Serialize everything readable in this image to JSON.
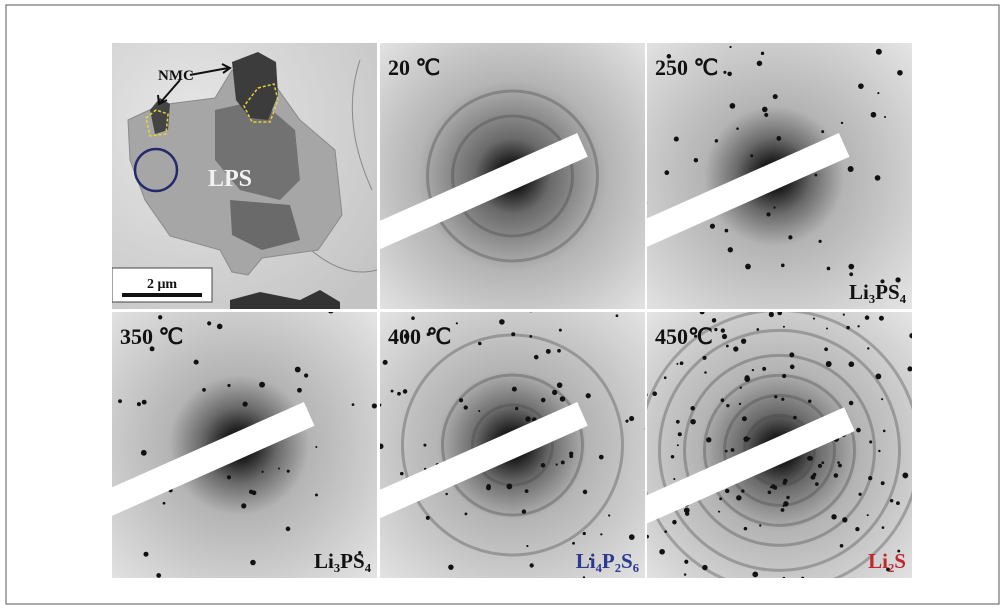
{
  "tem_image": {
    "particle_label": "NMC",
    "matrix_label": "LPS",
    "scale_bar": "2 μm"
  },
  "diffraction_patterns": [
    {
      "temperature": "20 ℃"
    },
    {
      "temperature": "250 ℃",
      "phase": "Li₃PS₄",
      "phase_color": "#111111"
    },
    {
      "temperature": "350 ℃",
      "phase": "Li₃PS₄",
      "phase_color": "#111111"
    },
    {
      "temperature": "400 ℃",
      "phase": "Li₄P₂S₆",
      "phase_color": "#2b3990"
    },
    {
      "temperature": "450℃",
      "phase": "Li₂S",
      "phase_color": "#c0272d"
    }
  ]
}
